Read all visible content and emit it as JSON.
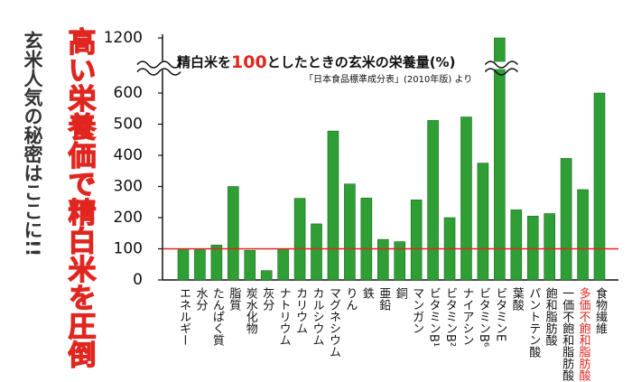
{
  "chart_data": {
    "type": "bar",
    "title_parts": [
      "精白米を",
      "100",
      "としたときの玄米の栄養量(%)"
    ],
    "subtitle": "「日本食品標準成分表」(2010年版) より",
    "headline": "高い栄養価で精白米を圧倒",
    "side_caption": "玄米人気の秘密はここに!!",
    "categories": [
      "エネルギー",
      "水分",
      "たんぱく質",
      "脂質",
      "炭水化物",
      "灰分",
      "ナトリウム",
      "カリウム",
      "カルシウム",
      "マグネシウム",
      "りん",
      "鉄",
      "亜鉛",
      "銅",
      "マンガン",
      "ビタミンB¹",
      "ビタミンB²",
      "ナイアシン",
      "ビタミンB⁶",
      "ビタミンE",
      "葉酸",
      "パントテン酸",
      "飽和脂肪酸",
      "一価不飽和脂肪酸",
      "多価不飽和脂肪酸",
      "食物繊維"
    ],
    "values": [
      97,
      97,
      112,
      300,
      95,
      30,
      100,
      262,
      180,
      478,
      308,
      263,
      130,
      123,
      257,
      512,
      200,
      523,
      375,
      1200,
      225,
      205,
      213,
      390,
      290,
      600
    ],
    "color": "#2e9e35",
    "ylim": [
      0,
      1200
    ],
    "yticks": [
      0,
      100,
      200,
      300,
      400,
      500,
      600,
      1200
    ],
    "axis_break": [
      650,
      1150
    ],
    "reference_line": {
      "value": 100,
      "color": "#e0261f"
    },
    "highlight_index": 24,
    "highlight_color": "#e0261f",
    "grid": false
  }
}
